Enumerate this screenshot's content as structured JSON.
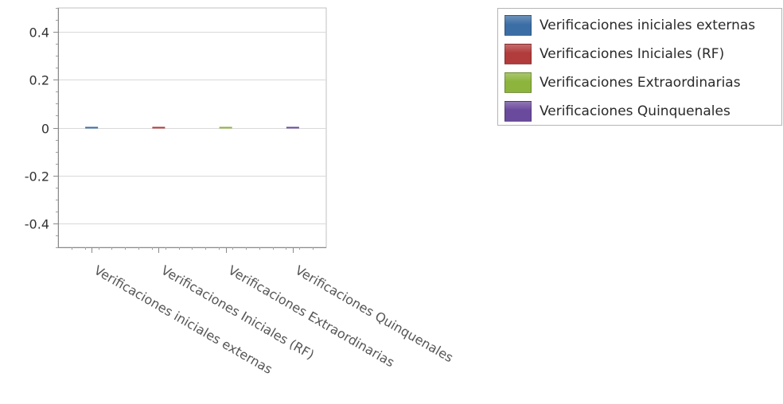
{
  "chart_data": {
    "type": "bar",
    "categories": [
      "Verificaciones iniciales externas",
      "Verificaciones Iniciales (RF)",
      "Verificaciones Extraordinarias",
      "Verificaciones Quinquenales"
    ],
    "series": [
      {
        "name": "Verificaciones iniciales externas",
        "values": [
          0,
          null,
          null,
          null
        ],
        "color": "#3B6EA5"
      },
      {
        "name": "Verificaciones Iniciales (RF)",
        "values": [
          null,
          0,
          null,
          null
        ],
        "color": "#B23B3B"
      },
      {
        "name": "Verificaciones Extraordinarias",
        "values": [
          null,
          null,
          0,
          null
        ],
        "color": "#8DB43C"
      },
      {
        "name": "Verificaciones Quinquenales",
        "values": [
          null,
          null,
          null,
          0
        ],
        "color": "#6A4A9C"
      }
    ],
    "ylim": [
      -0.5,
      0.5
    ],
    "yticks": [
      -0.4,
      -0.2,
      0,
      0.2,
      0.4
    ],
    "ytick_labels": [
      "-0.4",
      "-0.2",
      "0",
      "0.2",
      "0.4"
    ],
    "grid": true,
    "legend_position": "top-right"
  }
}
